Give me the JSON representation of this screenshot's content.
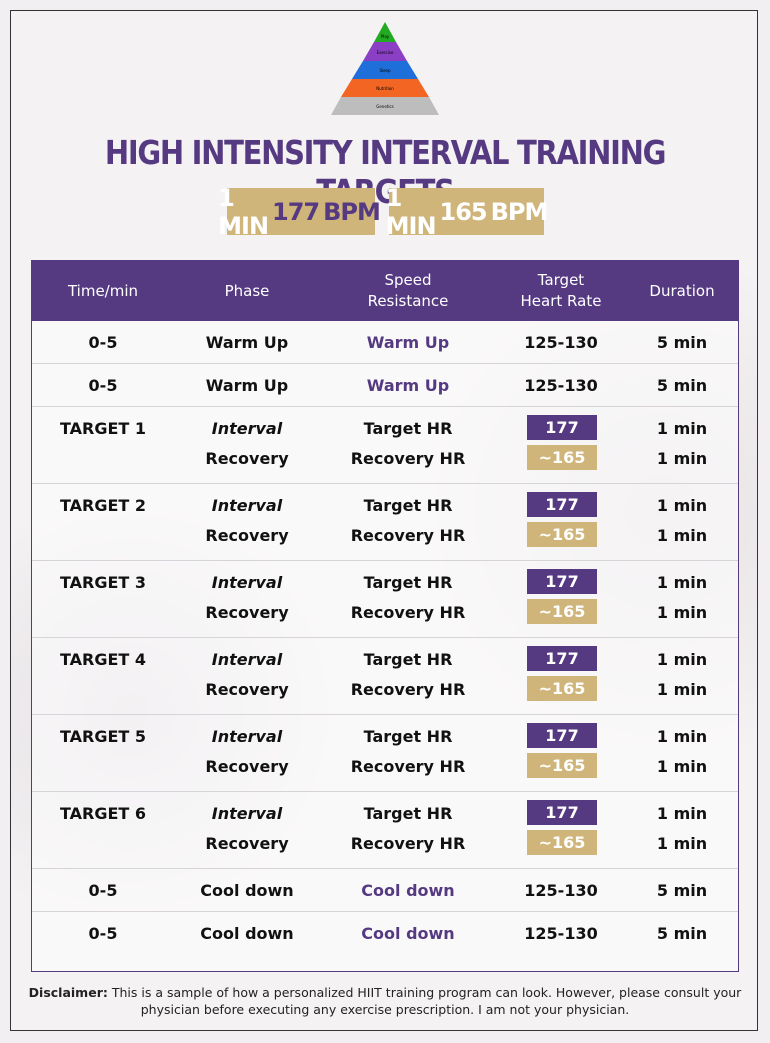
{
  "pyramid": {
    "levels": [
      "Play",
      "Exercise",
      "Sleep",
      "Nutrition",
      "Genetics"
    ],
    "colors": [
      "#22aa22",
      "#8b3fc4",
      "#1e6fd9",
      "#f26522",
      "#bdbdbd"
    ]
  },
  "title": "HIGH INTENSITY INTERVAL TRAINING TARGETS",
  "badges": [
    {
      "prefix": "1 MIN",
      "value": "177",
      "suffix": "BPM"
    },
    {
      "prefix": "1 MIN",
      "value": "165",
      "suffix": "BPM"
    }
  ],
  "table": {
    "headers": {
      "time": "Time/min",
      "phase": "Phase",
      "speed_line1": "Speed",
      "speed_line2": "Resistance",
      "target_line1": "Target",
      "target_line2": "Heart Rate",
      "duration": "Duration"
    },
    "warmup": [
      {
        "time": "0-5",
        "phase": "Warm Up",
        "speed": "Warm Up",
        "hr": "125-130",
        "duration": "5 min"
      },
      {
        "time": "0-5",
        "phase": "Warm Up",
        "speed": "Warm Up",
        "hr": "125-130",
        "duration": "5 min"
      }
    ],
    "targets": [
      {
        "label": "TARGET 1",
        "interval": "Interval",
        "interval_speed": "Target HR",
        "interval_hr": "177",
        "interval_duration": "1 min",
        "recovery": "Recovery",
        "recovery_speed": "Recovery HR",
        "recovery_hr": "~165",
        "recovery_duration": "1 min"
      },
      {
        "label": "TARGET 2",
        "interval": "Interval",
        "interval_speed": "Target HR",
        "interval_hr": "177",
        "interval_duration": "1 min",
        "recovery": "Recovery",
        "recovery_speed": "Recovery HR",
        "recovery_hr": "~165",
        "recovery_duration": "1 min"
      },
      {
        "label": "TARGET 3",
        "interval": "Interval",
        "interval_speed": "Target HR",
        "interval_hr": "177",
        "interval_duration": "1 min",
        "recovery": "Recovery",
        "recovery_speed": "Recovery HR",
        "recovery_hr": "~165",
        "recovery_duration": "1 min"
      },
      {
        "label": "TARGET 4",
        "interval": "Interval",
        "interval_speed": "Target HR",
        "interval_hr": "177",
        "interval_duration": "1 min",
        "recovery": "Recovery",
        "recovery_speed": "Recovery HR",
        "recovery_hr": "~165",
        "recovery_duration": "1 min"
      },
      {
        "label": "TARGET 5",
        "interval": "Interval",
        "interval_speed": "Target HR",
        "interval_hr": "177",
        "interval_duration": "1 min",
        "recovery": "Recovery",
        "recovery_speed": "Recovery HR",
        "recovery_hr": "~165",
        "recovery_duration": "1 min"
      },
      {
        "label": "TARGET 6",
        "interval": "Interval",
        "interval_speed": "Target HR",
        "interval_hr": "177",
        "interval_duration": "1 min",
        "recovery": "Recovery",
        "recovery_speed": "Recovery HR",
        "recovery_hr": "~165",
        "recovery_duration": "1 min"
      }
    ],
    "cooldown": [
      {
        "time": "0-5",
        "phase": "Cool down",
        "speed": "Cool down",
        "hr": "125-130",
        "duration": "5 min"
      },
      {
        "time": "0-5",
        "phase": "Cool down",
        "speed": "Cool down",
        "hr": "125-130",
        "duration": "5 min"
      }
    ]
  },
  "disclaimer": {
    "label": "Disclaimer:",
    "text": "This is a sample of how a personalized HIIT training program can look. However, please consult your physician before executing any exercise prescription. I am not your physician."
  },
  "colors": {
    "purple": "#553a82",
    "gold": "#cfb57a"
  }
}
